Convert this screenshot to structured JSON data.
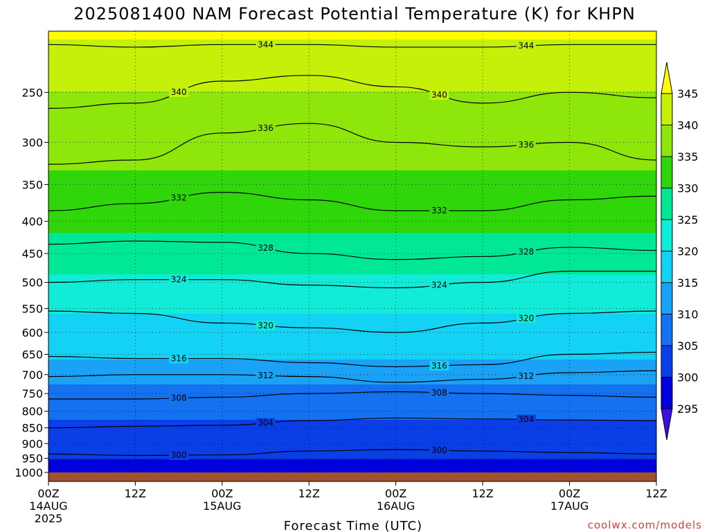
{
  "header": {
    "title": "2025081400 NAM Forecast Potential Temperature (K) for KHPN"
  },
  "footer": {
    "credit": "coolwx.com/models"
  },
  "chart_data": {
    "type": "heatmap",
    "title": "2025081400 NAM Forecast Potential Temperature (K) for KHPN",
    "xlabel": "Forecast Time (UTC)",
    "ylabel": "",
    "x_unit": "forecast hours from 2025-08-14 00Z",
    "xlim": [
      0,
      84
    ],
    "ylim_hPa": [
      1000,
      200
    ],
    "y_scale": "log-pressure",
    "grid": "dotted",
    "x_ticks": [
      {
        "hour": 0,
        "label": "00Z",
        "date": "14AUG",
        "year": "2025"
      },
      {
        "hour": 12,
        "label": "12Z",
        "date": "",
        "year": ""
      },
      {
        "hour": 24,
        "label": "00Z",
        "date": "15AUG",
        "year": ""
      },
      {
        "hour": 36,
        "label": "12Z",
        "date": "",
        "year": ""
      },
      {
        "hour": 48,
        "label": "00Z",
        "date": "16AUG",
        "year": ""
      },
      {
        "hour": 60,
        "label": "12Z",
        "date": "",
        "year": ""
      },
      {
        "hour": 72,
        "label": "00Z",
        "date": "17AUG",
        "year": ""
      },
      {
        "hour": 84,
        "label": "12Z",
        "date": "",
        "year": ""
      }
    ],
    "y_ticks": [
      "250",
      "300",
      "350",
      "400",
      "450",
      "500",
      "550",
      "600",
      "650",
      "700",
      "750",
      "800",
      "850",
      "900",
      "950",
      "1000"
    ],
    "y_tick_values": [
      250,
      300,
      350,
      400,
      450,
      500,
      550,
      600,
      650,
      700,
      750,
      800,
      850,
      900,
      950,
      1000
    ],
    "colorbar": {
      "labels": [
        "345",
        "340",
        "335",
        "330",
        "325",
        "320",
        "315",
        "310",
        "305",
        "300",
        "295"
      ],
      "levels": [
        295,
        300,
        305,
        310,
        315,
        320,
        325,
        330,
        335,
        340,
        345
      ],
      "colors": [
        "#3a10e0",
        "#0000dd",
        "#0a3fe8",
        "#1472f0",
        "#1aa2f6",
        "#14d2f4",
        "#10ecd8",
        "#00e896",
        "#2ed60a",
        "#8ee60a",
        "#c4f00a",
        "#ffff00"
      ],
      "top_triangle_color": "#ffff00",
      "bottom_triangle_color": "#3a10e0"
    },
    "ground_color": "#a0522d",
    "series": [
      {
        "level": 300,
        "label": "300",
        "pressure_hPa": [
          935,
          940,
          938,
          925,
          920,
          925,
          930,
          935
        ]
      },
      {
        "level": 304,
        "label": "304",
        "pressure_hPa": [
          850,
          845,
          842,
          828,
          820,
          823,
          826,
          828
        ]
      },
      {
        "level": 308,
        "label": "308",
        "pressure_hPa": [
          765,
          765,
          760,
          750,
          745,
          750,
          755,
          760
        ]
      },
      {
        "level": 312,
        "label": "312",
        "pressure_hPa": [
          705,
          700,
          700,
          705,
          720,
          712,
          695,
          690
        ]
      },
      {
        "level": 316,
        "label": "316",
        "pressure_hPa": [
          655,
          660,
          660,
          670,
          680,
          675,
          650,
          645
        ]
      },
      {
        "level": 320,
        "label": "320",
        "pressure_hPa": [
          555,
          560,
          580,
          590,
          600,
          580,
          560,
          555
        ]
      },
      {
        "level": 324,
        "label": "324",
        "pressure_hPa": [
          500,
          495,
          495,
          505,
          510,
          500,
          480,
          480
        ]
      },
      {
        "level": 328,
        "label": "328",
        "pressure_hPa": [
          435,
          430,
          432,
          450,
          460,
          455,
          440,
          445
        ]
      },
      {
        "level": 332,
        "label": "332",
        "pressure_hPa": [
          385,
          375,
          360,
          370,
          385,
          385,
          370,
          365
        ]
      },
      {
        "level": 336,
        "label": "336",
        "pressure_hPa": [
          325,
          320,
          290,
          280,
          300,
          305,
          300,
          320
        ]
      },
      {
        "level": 340,
        "label": "340",
        "pressure_hPa": [
          265,
          260,
          240,
          235,
          245,
          260,
          250,
          255
        ]
      },
      {
        "level": 344,
        "label": "344",
        "pressure_hPa": [
          210,
          212,
          210,
          210,
          212,
          212,
          210,
          210
        ]
      }
    ],
    "shading_stops": [
      {
        "pressure_hPa": 1000,
        "theta": 297
      },
      {
        "pressure_hPa": 950,
        "theta": 300
      },
      {
        "pressure_hPa": 900,
        "theta": 302
      },
      {
        "pressure_hPa": 850,
        "theta": 304
      },
      {
        "pressure_hPa": 800,
        "theta": 306
      },
      {
        "pressure_hPa": 750,
        "theta": 308
      },
      {
        "pressure_hPa": 700,
        "theta": 312
      },
      {
        "pressure_hPa": 650,
        "theta": 316
      },
      {
        "pressure_hPa": 600,
        "theta": 318.5
      },
      {
        "pressure_hPa": 550,
        "theta": 320.5
      },
      {
        "pressure_hPa": 500,
        "theta": 324
      },
      {
        "pressure_hPa": 450,
        "theta": 328
      },
      {
        "pressure_hPa": 400,
        "theta": 331
      },
      {
        "pressure_hPa": 350,
        "theta": 334
      },
      {
        "pressure_hPa": 300,
        "theta": 337
      },
      {
        "pressure_hPa": 250,
        "theta": 340
      },
      {
        "pressure_hPa": 220,
        "theta": 343
      },
      {
        "pressure_hPa": 200,
        "theta": 346
      }
    ]
  }
}
